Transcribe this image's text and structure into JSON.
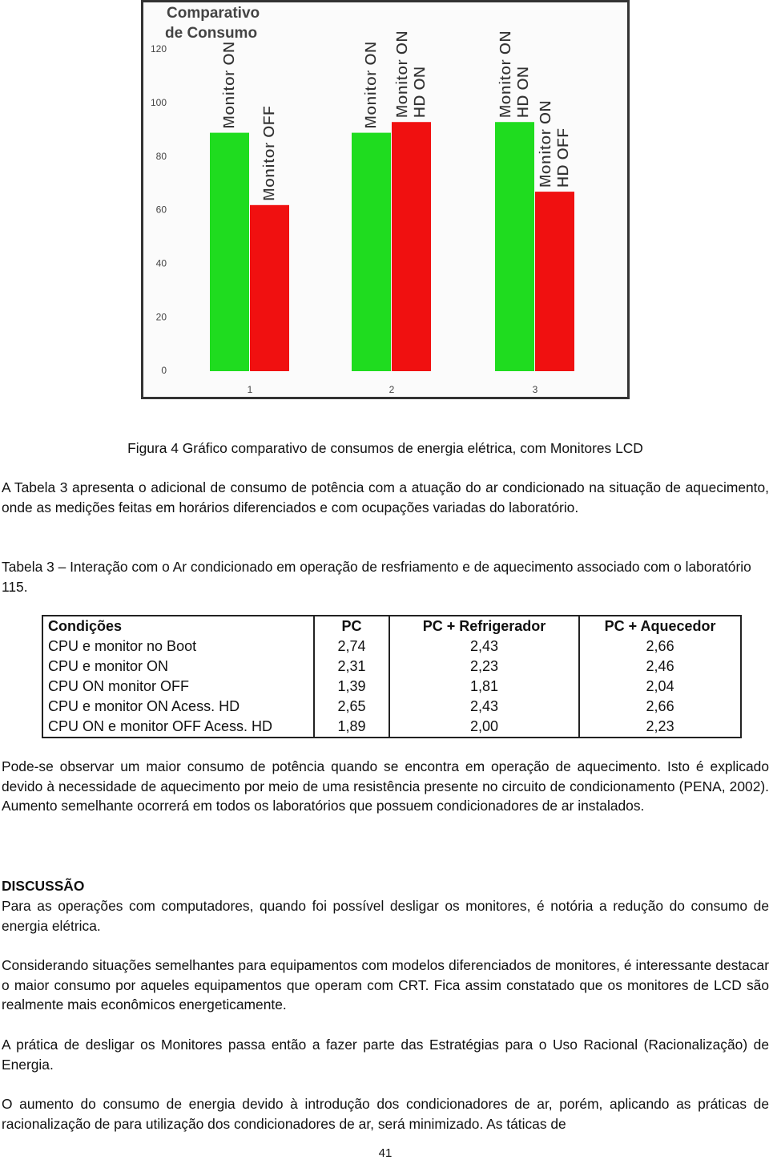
{
  "chart_data": {
    "type": "bar",
    "title": [
      "Comparativo",
      "de Consumo"
    ],
    "categories": [
      "1",
      "2",
      "3"
    ],
    "series": [
      {
        "color": "#1fdc1f",
        "values": [
          89,
          89,
          93
        ],
        "labels": [
          [
            "Monitor ON"
          ],
          [
            "Monitor ON"
          ],
          [
            "Monitor ON",
            "HD ON"
          ]
        ]
      },
      {
        "color": "#f01010",
        "values": [
          62,
          93,
          67
        ],
        "labels": [
          [
            "Monitor OFF"
          ],
          [
            "Monitor ON",
            "HD ON"
          ],
          [
            "Monitor ON",
            "HD OFF"
          ]
        ]
      }
    ],
    "ylim": [
      0,
      120
    ],
    "yticks": [
      0,
      20,
      40,
      60,
      80,
      100,
      120
    ],
    "grid": false
  },
  "document": {
    "figure_caption": "Figura 4 Gráfico comparativo de consumos de energia elétrica, com Monitores LCD",
    "paragraph_1": "A Tabela 3 apresenta o adicional de consumo de potência com a atuação do ar condicionado na situação de aquecimento, onde as medições feitas em horários diferenciados e com ocupações variadas do laboratório.",
    "table_caption": "Tabela 3 – Interação com o Ar condicionado em operação de resfriamento e de aquecimento associado com o laboratório 115.",
    "table": {
      "header": [
        "Condições",
        "PC",
        "PC + Refrigerador",
        "PC + Aquecedor"
      ],
      "rows": [
        [
          "CPU e monitor no Boot",
          "2,74",
          "2,43",
          "2,66"
        ],
        [
          "CPU e monitor ON",
          "2,31",
          "2,23",
          "2,46"
        ],
        [
          "CPU ON monitor OFF",
          "1,39",
          "1,81",
          "2,04"
        ],
        [
          "CPU e monitor ON Acess. HD",
          "2,65",
          "2,43",
          "2,66"
        ],
        [
          "CPU ON e monitor OFF Acess. HD",
          "1,89",
          "2,00",
          "2,23"
        ]
      ]
    },
    "paragraph_2": "Pode-se observar um maior consumo de potência quando se encontra em operação de aquecimento. Isto é explicado devido à necessidade de aquecimento por meio de uma resistência presente no circuito de condicionamento (PENA, 2002). Aumento semelhante ocorrerá em todos os laboratórios que possuem condicionadores de ar instalados.",
    "section_heading": "DISCUSSÃO",
    "paragraph_3": "Para as operações com computadores, quando foi possível desligar os monitores, é notória a redução do consumo de energia elétrica.",
    "paragraph_4": "Considerando situações semelhantes para equipamentos com modelos diferenciados de monitores, é interessante destacar o maior consumo por aqueles equipamentos que operam com CRT. Fica assim constatado que os monitores de LCD são realmente mais econômicos energeticamente.",
    "paragraph_5": "A prática de desligar os Monitores passa então a fazer parte das Estratégias para o Uso Racional (Racionalização) de Energia.",
    "paragraph_6": "O aumento do consumo de energia devido à introdução dos condicionadores de ar, porém, aplicando as práticas de racionalização de para utilização dos condicionadores de ar, será minimizado. As táticas de",
    "page_number": "41"
  }
}
